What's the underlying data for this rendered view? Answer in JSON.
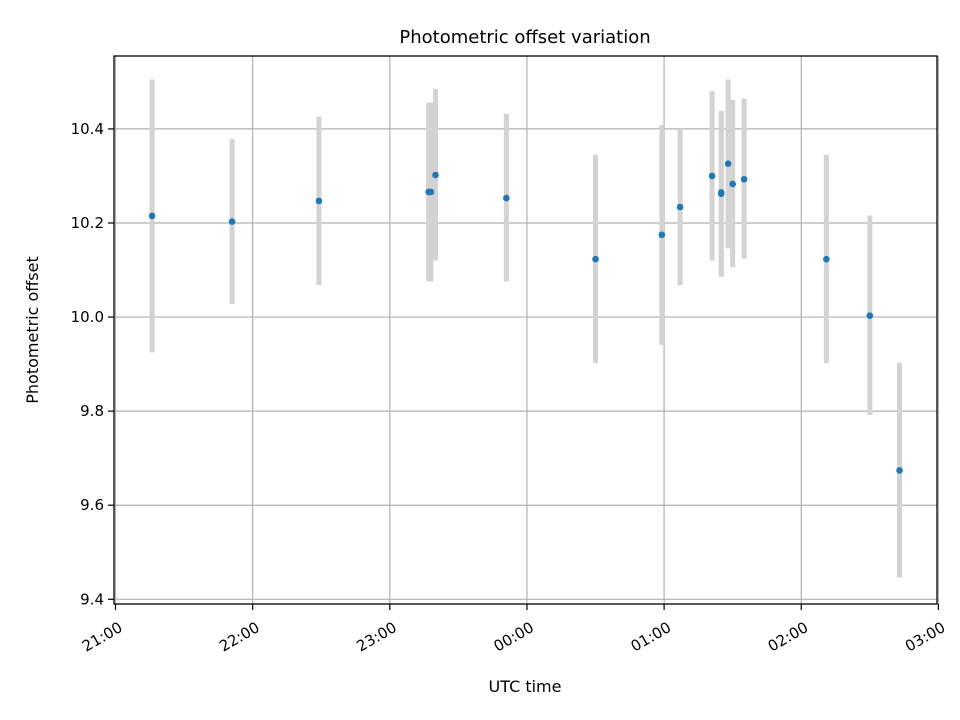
{
  "chart_data": {
    "type": "scatter",
    "title": "Photometric offset variation",
    "xlabel": "UTC time",
    "ylabel": "Photometric offset",
    "x_tick_labels": [
      "21:00",
      "22:00",
      "23:00",
      "00:00",
      "01:00",
      "02:00",
      "03:00"
    ],
    "y_tick_labels": [
      "9.4",
      "9.6",
      "9.8",
      "10.0",
      "10.2",
      "10.4"
    ],
    "xlim": [
      0,
      6
    ],
    "ylim": [
      9.39,
      10.555
    ],
    "x_unit_note": "hours after 21:00 UTC",
    "grid": true,
    "colors": {
      "point": "#1f77b4",
      "errorbar": "#d3d3d3",
      "grid": "#b0b0b0"
    },
    "points": [
      {
        "time": "21:16",
        "y": 10.215,
        "yerr_low": 9.925,
        "yerr_high": 10.505
      },
      {
        "time": "21:51",
        "y": 10.203,
        "yerr_low": 10.028,
        "yerr_high": 10.378
      },
      {
        "time": "22:29",
        "y": 10.247,
        "yerr_low": 10.068,
        "yerr_high": 10.426
      },
      {
        "time": "23:17",
        "y": 10.266,
        "yerr_low": 10.076,
        "yerr_high": 10.456
      },
      {
        "time": "23:18",
        "y": 10.266,
        "yerr_low": 10.076,
        "yerr_high": 10.456
      },
      {
        "time": "23:20",
        "y": 10.302,
        "yerr_low": 10.12,
        "yerr_high": 10.485
      },
      {
        "time": "23:51",
        "y": 10.253,
        "yerr_low": 10.076,
        "yerr_high": 10.432
      },
      {
        "time": "00:30",
        "y": 10.123,
        "yerr_low": 9.902,
        "yerr_high": 10.345
      },
      {
        "time": "00:59",
        "y": 10.175,
        "yerr_low": 9.941,
        "yerr_high": 10.408
      },
      {
        "time": "01:07",
        "y": 10.234,
        "yerr_low": 10.068,
        "yerr_high": 10.4
      },
      {
        "time": "01:21",
        "y": 10.3,
        "yerr_low": 10.12,
        "yerr_high": 10.48
      },
      {
        "time": "01:25",
        "y": 10.262,
        "yerr_low": 10.086,
        "yerr_high": 10.438
      },
      {
        "time": "01:25",
        "y": 10.265,
        "yerr_low": 10.086,
        "yerr_high": 10.438
      },
      {
        "time": "01:28",
        "y": 10.326,
        "yerr_low": 10.146,
        "yerr_high": 10.505
      },
      {
        "time": "01:30",
        "y": 10.283,
        "yerr_low": 10.106,
        "yerr_high": 10.462
      },
      {
        "time": "01:35",
        "y": 10.293,
        "yerr_low": 10.124,
        "yerr_high": 10.464
      },
      {
        "time": "02:11",
        "y": 10.123,
        "yerr_low": 9.902,
        "yerr_high": 10.345
      },
      {
        "time": "02:30",
        "y": 10.003,
        "yerr_low": 9.792,
        "yerr_high": 10.216
      },
      {
        "time": "02:43",
        "y": 9.674,
        "yerr_low": 9.446,
        "yerr_high": 9.903
      }
    ]
  }
}
